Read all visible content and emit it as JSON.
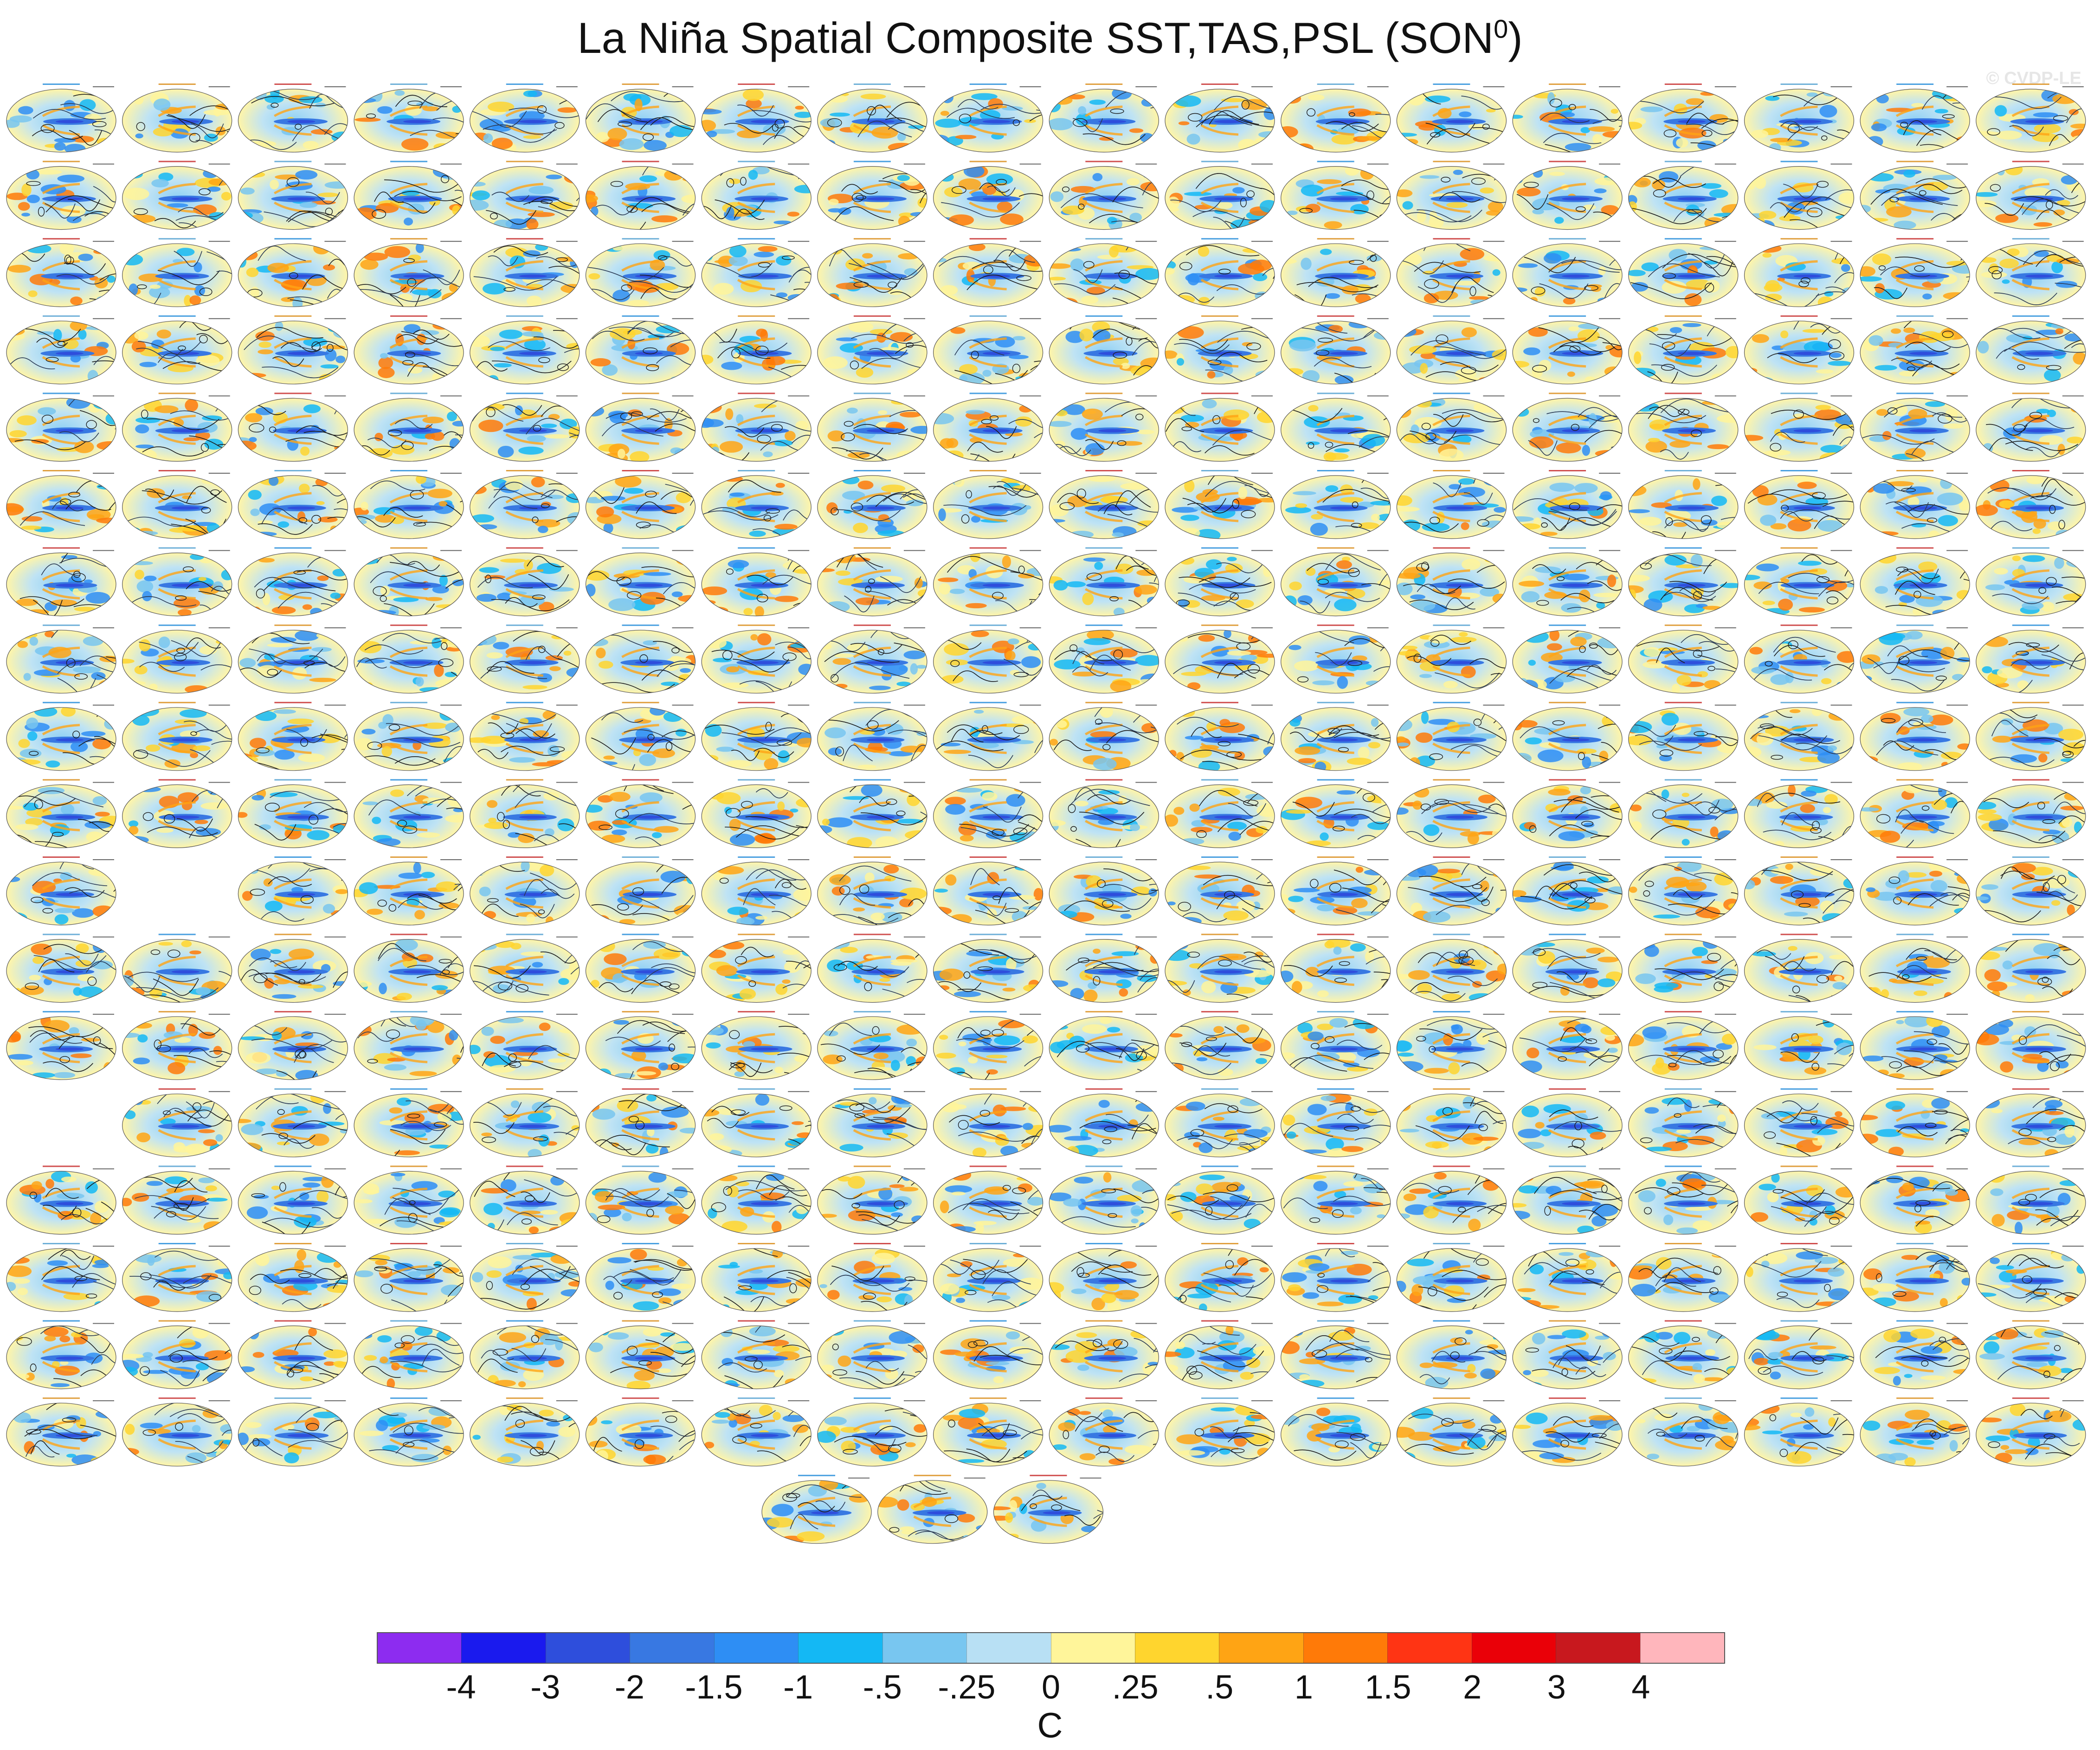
{
  "title": {
    "main": "La Niña Spatial Composite SST,TAS,PSL (SON",
    "superscript": "0",
    "close": ")"
  },
  "watermark": "© CVDP-LE",
  "panel_grid": {
    "rows": 18,
    "columns": 18,
    "missing_cells": [
      [
        10,
        1
      ],
      [
        13,
        0
      ]
    ],
    "final_row_panels": 3
  },
  "colorbar": {
    "unit": "C",
    "colors": [
      "#8d2cf0",
      "#1a1aee",
      "#2e4edc",
      "#3878e2",
      "#2e8ef4",
      "#14b8f4",
      "#78c6f0",
      "#b8e0f4",
      "#fff59a",
      "#ffd52e",
      "#ffa414",
      "#ff7a08",
      "#ff3414",
      "#ea0008",
      "#c8181e",
      "#ffb6bc"
    ],
    "labels": [
      "-4",
      "-3",
      "-2",
      "-1.5",
      "-1",
      "-.5",
      "-.25",
      "0",
      ".25",
      ".5",
      "1",
      "1.5",
      "2",
      "3",
      "4"
    ]
  }
}
